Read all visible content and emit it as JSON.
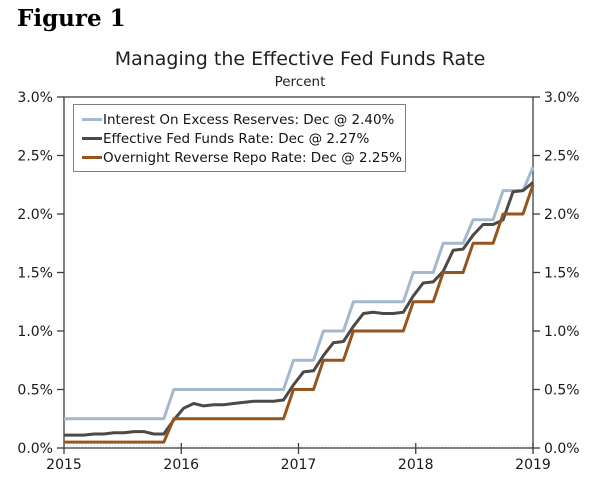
{
  "figure": {
    "label": "Figure 1"
  },
  "chart": {
    "title": "Managing the Effective Fed Funds Rate",
    "subtitle": "Percent",
    "legend": [
      {
        "label": "Interest On Excess Reserves: Dec @ 2.40%",
        "color": "#a4b9cd"
      },
      {
        "label": "Effective Fed Funds Rate: Dec @ 2.27%",
        "color": "#4d4945"
      },
      {
        "label": "Overnight Reverse Repo Rate: Dec @ 2.25%",
        "color": "#96541f"
      }
    ]
  },
  "chart_data": {
    "type": "line",
    "title": "Managing the Effective Fed Funds Rate",
    "subtitle": "Percent",
    "xlabel": "",
    "ylabel": "Percent",
    "ylim": [
      0,
      3
    ],
    "grid": false,
    "legend_position": "top-left",
    "y_ticks": [
      "0.0%",
      "0.5%",
      "1.0%",
      "1.5%",
      "2.0%",
      "2.5%",
      "3.0%"
    ],
    "y_tick_values": [
      0.0,
      0.5,
      1.0,
      1.5,
      2.0,
      2.5,
      3.0
    ],
    "x_ticks": [
      "2015",
      "2016",
      "2017",
      "2018",
      "2019"
    ],
    "x_frequency": "monthly",
    "x_start": "2015-01",
    "x_end": "2018-12",
    "series": [
      {
        "name": "Interest On Excess Reserves",
        "color": "#a4b9cd",
        "last_point_label": "Dec @ 2.40%",
        "values": [
          0.25,
          0.25,
          0.25,
          0.25,
          0.25,
          0.25,
          0.25,
          0.25,
          0.25,
          0.25,
          0.25,
          0.5,
          0.5,
          0.5,
          0.5,
          0.5,
          0.5,
          0.5,
          0.5,
          0.5,
          0.5,
          0.5,
          0.5,
          0.75,
          0.75,
          0.75,
          1.0,
          1.0,
          1.0,
          1.25,
          1.25,
          1.25,
          1.25,
          1.25,
          1.25,
          1.5,
          1.5,
          1.5,
          1.75,
          1.75,
          1.75,
          1.95,
          1.95,
          1.95,
          2.2,
          2.2,
          2.2,
          2.4
        ]
      },
      {
        "name": "Effective Fed Funds Rate",
        "color": "#4d4945",
        "last_point_label": "Dec @ 2.27%",
        "values": [
          0.11,
          0.11,
          0.11,
          0.12,
          0.12,
          0.13,
          0.13,
          0.14,
          0.14,
          0.12,
          0.12,
          0.24,
          0.34,
          0.38,
          0.36,
          0.37,
          0.37,
          0.38,
          0.39,
          0.4,
          0.4,
          0.4,
          0.41,
          0.54,
          0.65,
          0.66,
          0.79,
          0.9,
          0.91,
          1.04,
          1.15,
          1.16,
          1.15,
          1.15,
          1.16,
          1.3,
          1.41,
          1.42,
          1.51,
          1.69,
          1.7,
          1.82,
          1.91,
          1.91,
          1.95,
          2.19,
          2.2,
          2.27
        ]
      },
      {
        "name": "Overnight Reverse Repo Rate",
        "color": "#96541f",
        "last_point_label": "Dec @ 2.25%",
        "values": [
          0.05,
          0.05,
          0.05,
          0.05,
          0.05,
          0.05,
          0.05,
          0.05,
          0.05,
          0.05,
          0.05,
          0.25,
          0.25,
          0.25,
          0.25,
          0.25,
          0.25,
          0.25,
          0.25,
          0.25,
          0.25,
          0.25,
          0.25,
          0.5,
          0.5,
          0.5,
          0.75,
          0.75,
          0.75,
          1.0,
          1.0,
          1.0,
          1.0,
          1.0,
          1.0,
          1.25,
          1.25,
          1.25,
          1.5,
          1.5,
          1.5,
          1.75,
          1.75,
          1.75,
          2.0,
          2.0,
          2.0,
          2.25
        ]
      }
    ]
  }
}
